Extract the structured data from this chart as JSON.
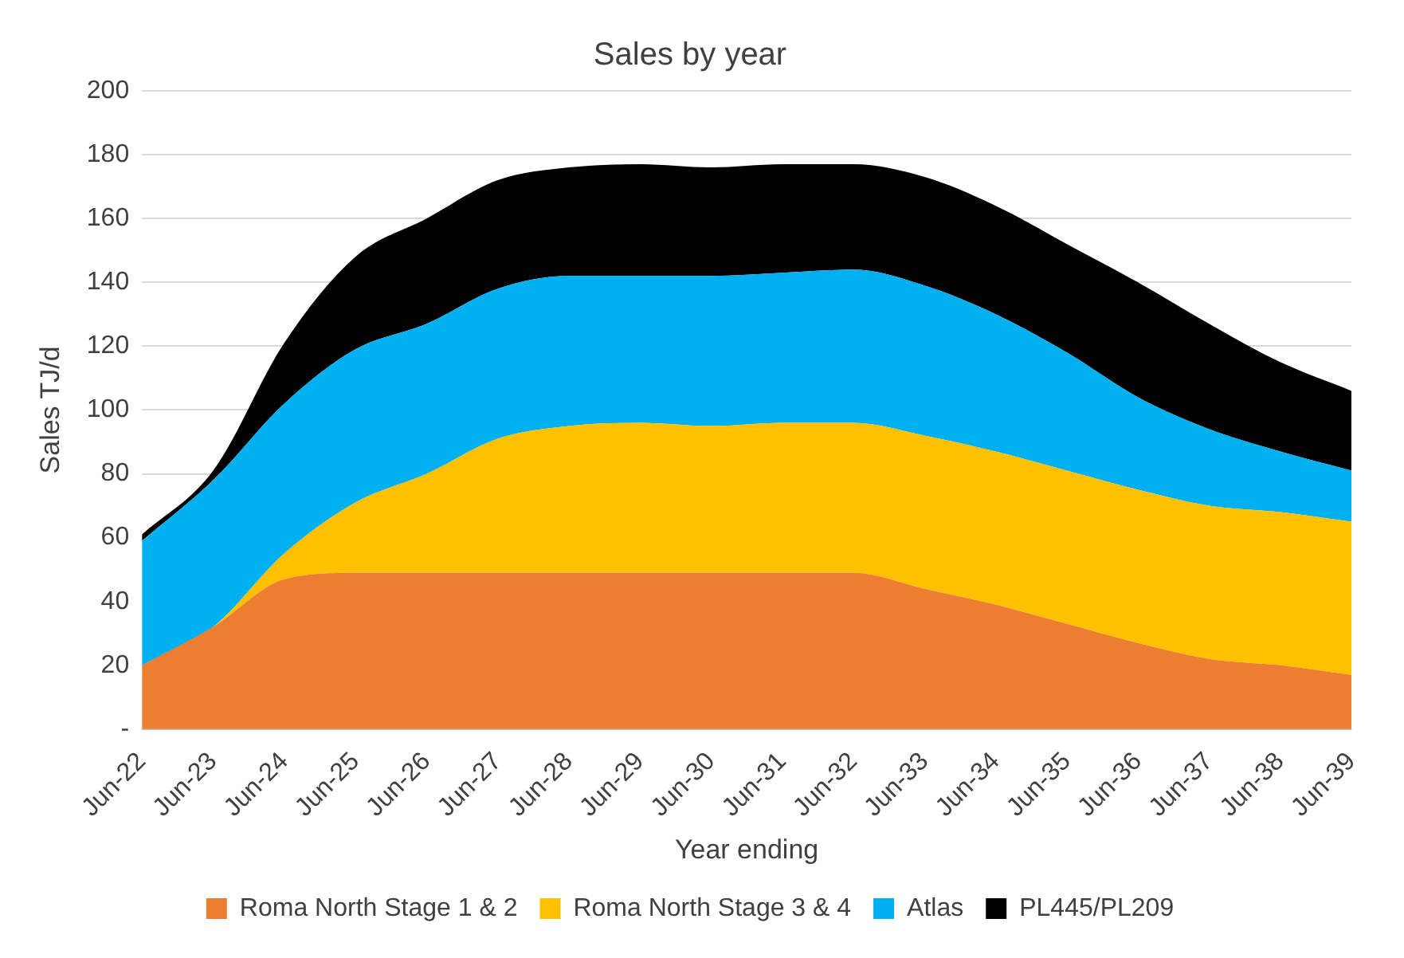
{
  "chart_data": {
    "type": "area",
    "title": "Sales by year",
    "xlabel": "Year ending",
    "ylabel": "Sales TJ/d",
    "stacked": true,
    "categories": [
      "Jun-22",
      "Jun-23",
      "Jun-24",
      "Jun-25",
      "Jun-26",
      "Jun-27",
      "Jun-28",
      "Jun-29",
      "Jun-30",
      "Jun-31",
      "Jun-32",
      "Jun-33",
      "Jun-34",
      "Jun-35",
      "Jun-36",
      "Jun-37",
      "Jun-38",
      "Jun-39"
    ],
    "series": [
      {
        "name": "Roma North Stage 1 & 2",
        "color": "#ed7d31",
        "values": [
          20,
          32,
          47,
          49,
          49,
          49,
          49,
          49,
          49,
          49,
          49,
          44,
          39,
          33,
          27,
          22,
          20,
          17
        ]
      },
      {
        "name": "Roma North Stage 3 & 4",
        "color": "#ffc000",
        "values": [
          0,
          0,
          8,
          22,
          31,
          42,
          46,
          47,
          46,
          47,
          47,
          48,
          48,
          48,
          48,
          48,
          48,
          48
        ]
      },
      {
        "name": "Atlas",
        "color": "#00b0f0",
        "values": [
          39,
          46,
          47,
          48,
          47,
          47,
          47,
          46,
          47,
          47,
          48,
          47,
          43,
          37,
          29,
          24,
          19,
          16
        ]
      },
      {
        "name": "PL445/PL209",
        "color": "#000000",
        "values": [
          2,
          3,
          19,
          29,
          33,
          34,
          34,
          35,
          34,
          34,
          33,
          34,
          34,
          34,
          36,
          33,
          28,
          25
        ]
      }
    ],
    "ylim": [
      0,
      200
    ],
    "yticks": [
      {
        "value": 0,
        "label": "-"
      },
      20,
      40,
      60,
      80,
      100,
      120,
      140,
      160,
      180,
      200
    ],
    "grid": "y",
    "legend": "bottom"
  }
}
